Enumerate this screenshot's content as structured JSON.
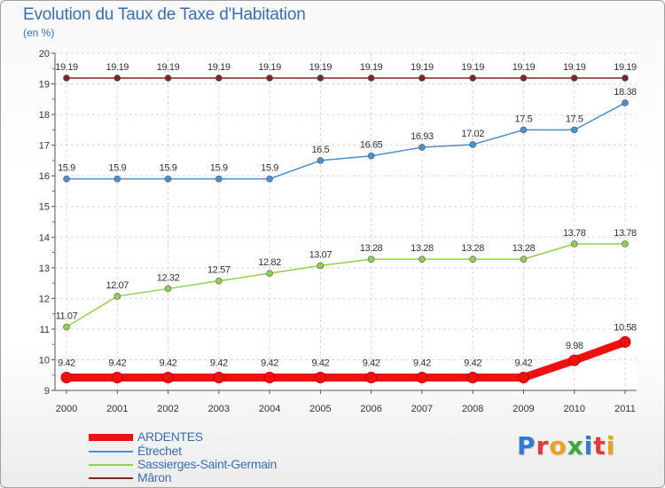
{
  "title": "Evolution du Taux de Taxe d'Habitation",
  "unit": "(en %)",
  "logo": "Proxiti",
  "chart_data": {
    "type": "line",
    "title": "Evolution du Taux de Taxe d'Habitation",
    "ylabel": "(en %)",
    "xlabel": "",
    "ylim": [
      9,
      20
    ],
    "yticks": [
      9,
      10,
      11,
      12,
      13,
      14,
      15,
      16,
      17,
      18,
      19,
      20
    ],
    "grid": true,
    "legend_position": "bottom-left",
    "categories": [
      "2000",
      "2001",
      "2002",
      "2003",
      "2004",
      "2005",
      "2006",
      "2007",
      "2008",
      "2009",
      "2010",
      "2011"
    ],
    "series": [
      {
        "name": "ARDENTES",
        "color": "#ee1111",
        "values": [
          9.42,
          9.42,
          9.42,
          9.42,
          9.42,
          9.42,
          9.42,
          9.42,
          9.42,
          9.42,
          9.98,
          10.58
        ],
        "labels": [
          "9.42",
          "9.42",
          "9.42",
          "9.42",
          "9.42",
          "9.42",
          "9.42",
          "9.42",
          "9.42",
          "9.42",
          "9.98",
          "10.58"
        ]
      },
      {
        "name": "Étrechet",
        "color": "#4a8fcf",
        "values": [
          15.9,
          15.9,
          15.9,
          15.9,
          15.9,
          16.5,
          16.65,
          16.93,
          17.02,
          17.5,
          17.5,
          18.38
        ],
        "labels": [
          "15.9",
          "15.9",
          "15.9",
          "15.9",
          "15.9",
          "16.5",
          "16.65",
          "16.93",
          "17.02",
          "17.5",
          "17.5",
          "18.38"
        ]
      },
      {
        "name": "Sassierges-Saint-Germain",
        "color": "#8fd050",
        "values": [
          11.07,
          12.07,
          12.32,
          12.57,
          12.82,
          13.07,
          13.28,
          13.28,
          13.28,
          13.28,
          13.78,
          13.78
        ],
        "labels": [
          "11.07",
          "12.07",
          "12.32",
          "12.57",
          "12.82",
          "13.07",
          "13.28",
          "13.28",
          "13.28",
          "13.28",
          "13.78",
          "13.78"
        ]
      },
      {
        "name": "Mâron",
        "color": "#7a2828",
        "values": [
          19.19,
          19.19,
          19.19,
          19.19,
          19.19,
          19.19,
          19.19,
          19.19,
          19.19,
          19.19,
          19.19,
          19.19
        ],
        "labels": [
          "19.19",
          "19.19",
          "19.19",
          "19.19",
          "19.19",
          "19.19",
          "19.19",
          "19.19",
          "19.19",
          "19.19",
          "19.19",
          "19.19"
        ]
      }
    ]
  }
}
